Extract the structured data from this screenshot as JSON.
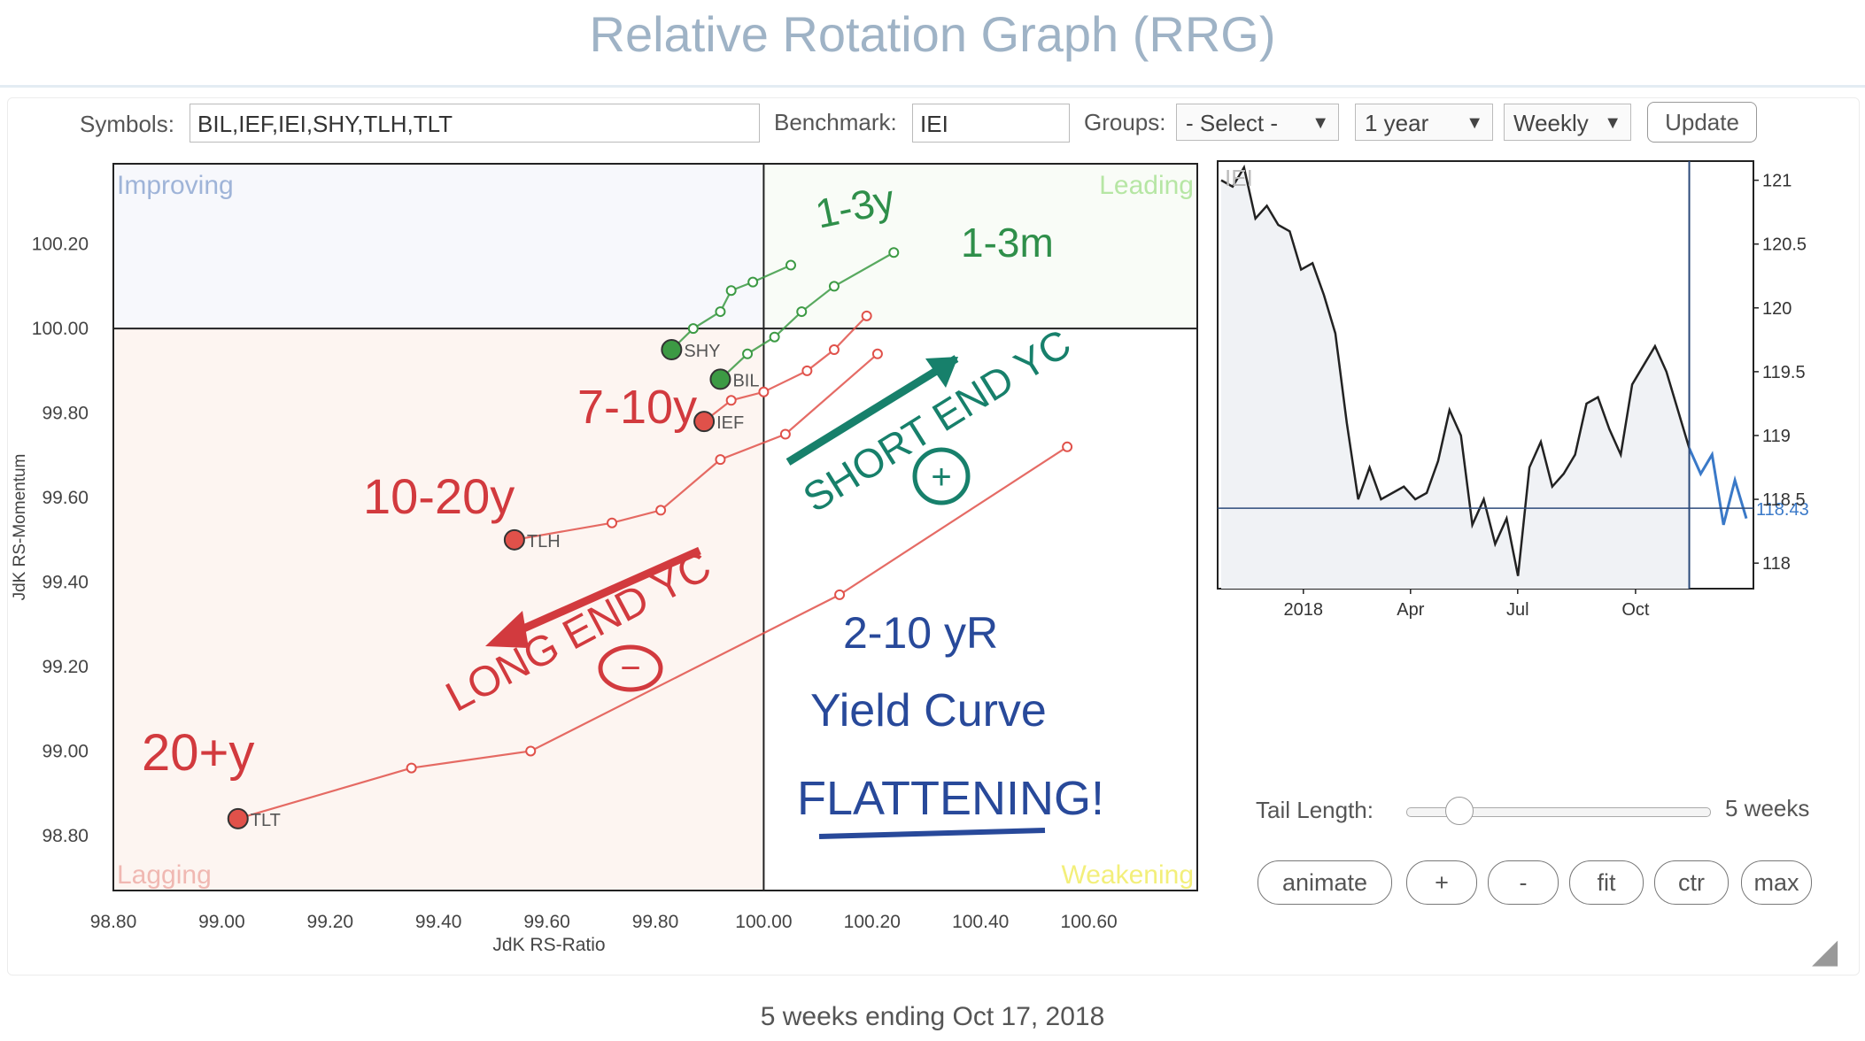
{
  "title": "Relative Rotation Graph (RRG)",
  "controls": {
    "symbols_label": "Symbols:",
    "symbols_value": "BIL,IEF,IEI,SHY,TLH,TLT",
    "benchmark_label": "Benchmark:",
    "benchmark_value": "IEI",
    "groups_label": "Groups:",
    "groups_value": "- Select -",
    "period_value": "1 year",
    "frequency_value": "Weekly",
    "update_label": "Update"
  },
  "chart_data": [
    {
      "type": "scatter",
      "title": "",
      "xlabel": "JdK RS-Ratio",
      "ylabel": "JdK RS-Momentum",
      "xlim": [
        98.8,
        100.8
      ],
      "ylim": [
        98.67,
        100.39
      ],
      "center": [
        100.0,
        100.0
      ],
      "x_ticks": [
        "98.80",
        "99.00",
        "99.20",
        "99.40",
        "99.60",
        "99.80",
        "100.00",
        "100.20",
        "100.40",
        "100.60"
      ],
      "y_ticks": [
        "100.20",
        "100.00",
        "99.80",
        "99.60",
        "99.40",
        "99.20",
        "99.00",
        "98.80"
      ],
      "quadrants": {
        "improving": "Improving",
        "leading": "Leading",
        "weakening": "Weakening",
        "lagging": "Lagging"
      },
      "quadrant_colors": {
        "improving": "#9fb4d8",
        "leading": "#b6e6a4",
        "weakening": "#f3ef7a",
        "lagging": "#f0b8b2"
      },
      "series": [
        {
          "name": "TLT",
          "color": "#e0514a",
          "x": [
            99.03,
            99.35,
            99.57,
            100.14,
            100.56
          ],
          "y": [
            98.84,
            98.96,
            99.0,
            99.37,
            99.72
          ]
        },
        {
          "name": "TLH",
          "color": "#e0514a",
          "x": [
            99.54,
            99.72,
            99.81,
            99.92,
            100.04,
            100.21
          ],
          "y": [
            99.5,
            99.54,
            99.57,
            99.69,
            99.75,
            99.94
          ]
        },
        {
          "name": "IEF",
          "color": "#e0514a",
          "x": [
            99.89,
            99.94,
            100.0,
            100.08,
            100.13,
            100.19
          ],
          "y": [
            99.78,
            99.83,
            99.85,
            99.9,
            99.95,
            100.03
          ]
        },
        {
          "name": "SHY",
          "color": "#3c9a44",
          "x": [
            99.83,
            99.87,
            99.92,
            99.94,
            99.98,
            100.05
          ],
          "y": [
            99.95,
            100.0,
            100.04,
            100.09,
            100.11,
            100.15
          ]
        },
        {
          "name": "BIL",
          "color": "#3c9a44",
          "x": [
            99.92,
            99.97,
            100.02,
            100.07,
            100.13,
            100.24
          ],
          "y": [
            99.88,
            99.94,
            99.98,
            100.04,
            100.1,
            100.18
          ]
        }
      ]
    },
    {
      "type": "line",
      "title": "IEI",
      "x_ticks": [
        "2018",
        "Apr",
        "Jul",
        "Oct"
      ],
      "y_ticks": [
        "121",
        "120.5",
        "120",
        "119.5",
        "119",
        "118.5",
        "118"
      ],
      "ylim": [
        117.8,
        121.15
      ],
      "current_value": "118.43",
      "line_color": "#222222",
      "tail_color": "#3a79c8",
      "values": [
        121.0,
        120.95,
        121.1,
        120.7,
        120.8,
        120.65,
        120.6,
        120.3,
        120.35,
        120.1,
        119.8,
        119.1,
        118.5,
        118.75,
        118.5,
        118.55,
        118.6,
        118.5,
        118.55,
        118.8,
        119.2,
        119.0,
        118.3,
        118.5,
        118.15,
        118.35,
        117.9,
        118.75,
        118.95,
        118.6,
        118.7,
        118.85,
        119.25,
        119.3,
        119.05,
        118.85,
        119.4,
        119.55,
        119.7,
        119.5,
        119.2,
        118.9,
        118.7,
        118.85,
        118.3,
        118.65,
        118.35
      ]
    }
  ],
  "annotations": {
    "a_1_3y": "1-3y",
    "a_1_3m": "1-3m",
    "a_7_10y": "7-10y",
    "a_10_20y": "10-20y",
    "a_20y": "20+y",
    "short_end": "SHORT END YC",
    "plus": "+",
    "long_end": "LONG END YC",
    "minus": "−",
    "yr": "2-10 yR",
    "yield_curve": "Yield Curve",
    "flattening": "FLATTENING!"
  },
  "tail": {
    "label": "Tail Length:",
    "value": "5 weeks",
    "fraction": 0.17
  },
  "buttons": {
    "animate": "animate",
    "plus": "+",
    "minus": "-",
    "fit": "fit",
    "ctr": "ctr",
    "max": "max"
  },
  "footer": "5 weeks ending Oct 17, 2018"
}
